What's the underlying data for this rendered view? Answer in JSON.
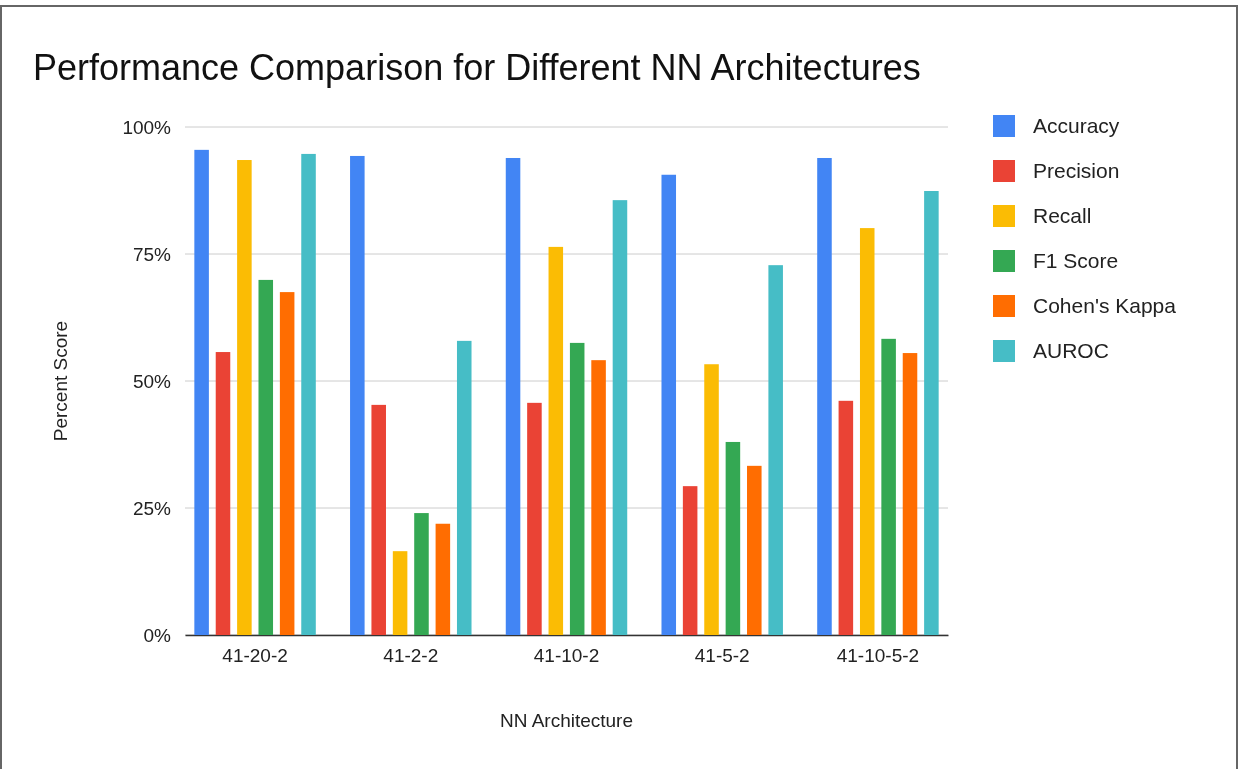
{
  "chart_data": {
    "type": "bar",
    "title": "Performance Comparison for Different NN Architectures",
    "xlabel": "NN Architecture",
    "ylabel": "Percent Score",
    "categories": [
      "41-20-2",
      "41-2-2",
      "41-10-2",
      "41-5-2",
      "41-10-5-2"
    ],
    "series": [
      {
        "name": "Accuracy",
        "color": "#4285f4",
        "values": [
          95.5,
          94.3,
          93.9,
          90.6,
          93.9
        ]
      },
      {
        "name": "Precision",
        "color": "#ea4335",
        "values": [
          55.7,
          45.3,
          45.7,
          29.3,
          46.1
        ]
      },
      {
        "name": "Recall",
        "color": "#fbbc04",
        "values": [
          93.5,
          16.5,
          76.4,
          53.3,
          80.1
        ]
      },
      {
        "name": "F1 Score",
        "color": "#34a853",
        "values": [
          69.9,
          24.0,
          57.5,
          38.0,
          58.3
        ]
      },
      {
        "name": "Cohen's Kappa",
        "color": "#ff6d01",
        "values": [
          67.5,
          21.9,
          54.1,
          33.3,
          55.5
        ]
      },
      {
        "name": "AUROC",
        "color": "#46bdc6",
        "values": [
          94.7,
          57.9,
          85.6,
          72.8,
          87.4
        ]
      }
    ],
    "ylim": [
      0,
      100
    ],
    "yticks": [
      {
        "value": 0,
        "label": "0%"
      },
      {
        "value": 25,
        "label": "25%"
      },
      {
        "value": 50,
        "label": "50%"
      },
      {
        "value": 75,
        "label": "75%"
      },
      {
        "value": 100,
        "label": "100%"
      }
    ],
    "grid": "y",
    "legend": "right"
  }
}
